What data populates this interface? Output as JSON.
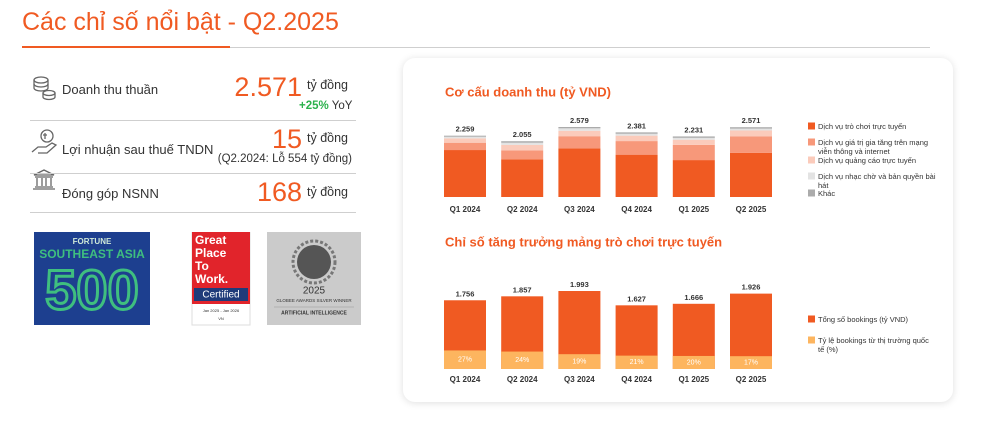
{
  "header": {
    "title": "Các chỉ số nổi bật - Q2.2025"
  },
  "metrics": [
    {
      "label": "Doanh thu thuần",
      "value": "2.571",
      "unit": "tỷ đồng",
      "note_value": "+25%",
      "note_suffix": "YoY"
    },
    {
      "label": "Lợi nhuận sau thuế TNDN",
      "value": "15",
      "unit": "tỷ đồng",
      "note": "(Q2.2024: Lỗ 554 tỷ đồng)"
    },
    {
      "label": "Đóng góp NSNN",
      "value": "168",
      "unit": "tỷ đồng"
    }
  ],
  "awards": {
    "fortune": {
      "top": "FORTUNE",
      "region": "SOUTHEAST ASIA",
      "number": "500"
    },
    "gptw": {
      "lines": [
        "Great",
        "Place",
        "To",
        "Work."
      ],
      "certified": "Certified",
      "period": "Jan 2025 - Jan 2026",
      "country": "VN"
    },
    "globee": {
      "year": "2025",
      "award": "GLOBEE AWARDS SILVER WINNER",
      "category": "ARTIFICIAL INTELLIGENCE"
    }
  },
  "chart_data": [
    {
      "type": "bar",
      "stacked": true,
      "title": "Cơ cấu doanh thu (tỷ VND)",
      "categories": [
        "Q1 2024",
        "Q2 2024",
        "Q3 2024",
        "Q4 2024",
        "Q1 2025",
        "Q2 2025"
      ],
      "series": [
        {
          "name": "Dịch vụ trò chơi trực tuyến",
          "color": "#f05a22",
          "values": [
            1730,
            1390,
            1790,
            1560,
            1360,
            1630
          ]
        },
        {
          "name": "Dịch vụ giá trị gia tăng trên mạng viễn thông và internet",
          "color": "#f7987a",
          "values": [
            270,
            330,
            450,
            500,
            560,
            600
          ]
        },
        {
          "name": "Dịch vụ quảng cáo trực tuyến",
          "color": "#fbcbbb",
          "values": [
            160,
            200,
            200,
            200,
            190,
            220
          ]
        },
        {
          "name": "Dịch vụ nhạc chờ và bản quyền bài hát",
          "color": "#e3e3e3",
          "values": [
            60,
            80,
            90,
            70,
            70,
            70
          ]
        },
        {
          "name": "Khác",
          "color": "#ababab",
          "values": [
            39,
            55,
            49,
            51,
            51,
            51
          ]
        }
      ],
      "totals": {
        "values": [
          2259,
          2055,
          2579,
          2381,
          2231,
          2571
        ],
        "value_labels": [
          "2.259",
          "2.055",
          "2.579",
          "2.381",
          "2.231",
          "2.571"
        ]
      },
      "legend": "right"
    },
    {
      "type": "bar",
      "mode": "share",
      "title": "Chỉ số tăng trưởng mảng trò chơi trực tuyến",
      "categories": [
        "Q1 2024",
        "Q2 2024",
        "Q3 2024",
        "Q4 2024",
        "Q1 2025",
        "Q2 2025"
      ],
      "series": [
        {
          "name": "Tổng số bookings (tỷ VND)",
          "color": "#f05a22",
          "values": [
            1756,
            1857,
            1993,
            1627,
            1666,
            1926
          ],
          "value_labels": [
            "1.756",
            "1.857",
            "1.993",
            "1.627",
            "1.666",
            "1.926"
          ]
        },
        {
          "name": "Tỷ lệ bookings từ thị trường quốc tế (%)",
          "color": "#fdb55f",
          "values": [
            27,
            24,
            19,
            21,
            20,
            17
          ],
          "value_labels": [
            "27%",
            "24%",
            "19%",
            "21%",
            "20%",
            "17%"
          ]
        }
      ],
      "legend": "right"
    }
  ]
}
